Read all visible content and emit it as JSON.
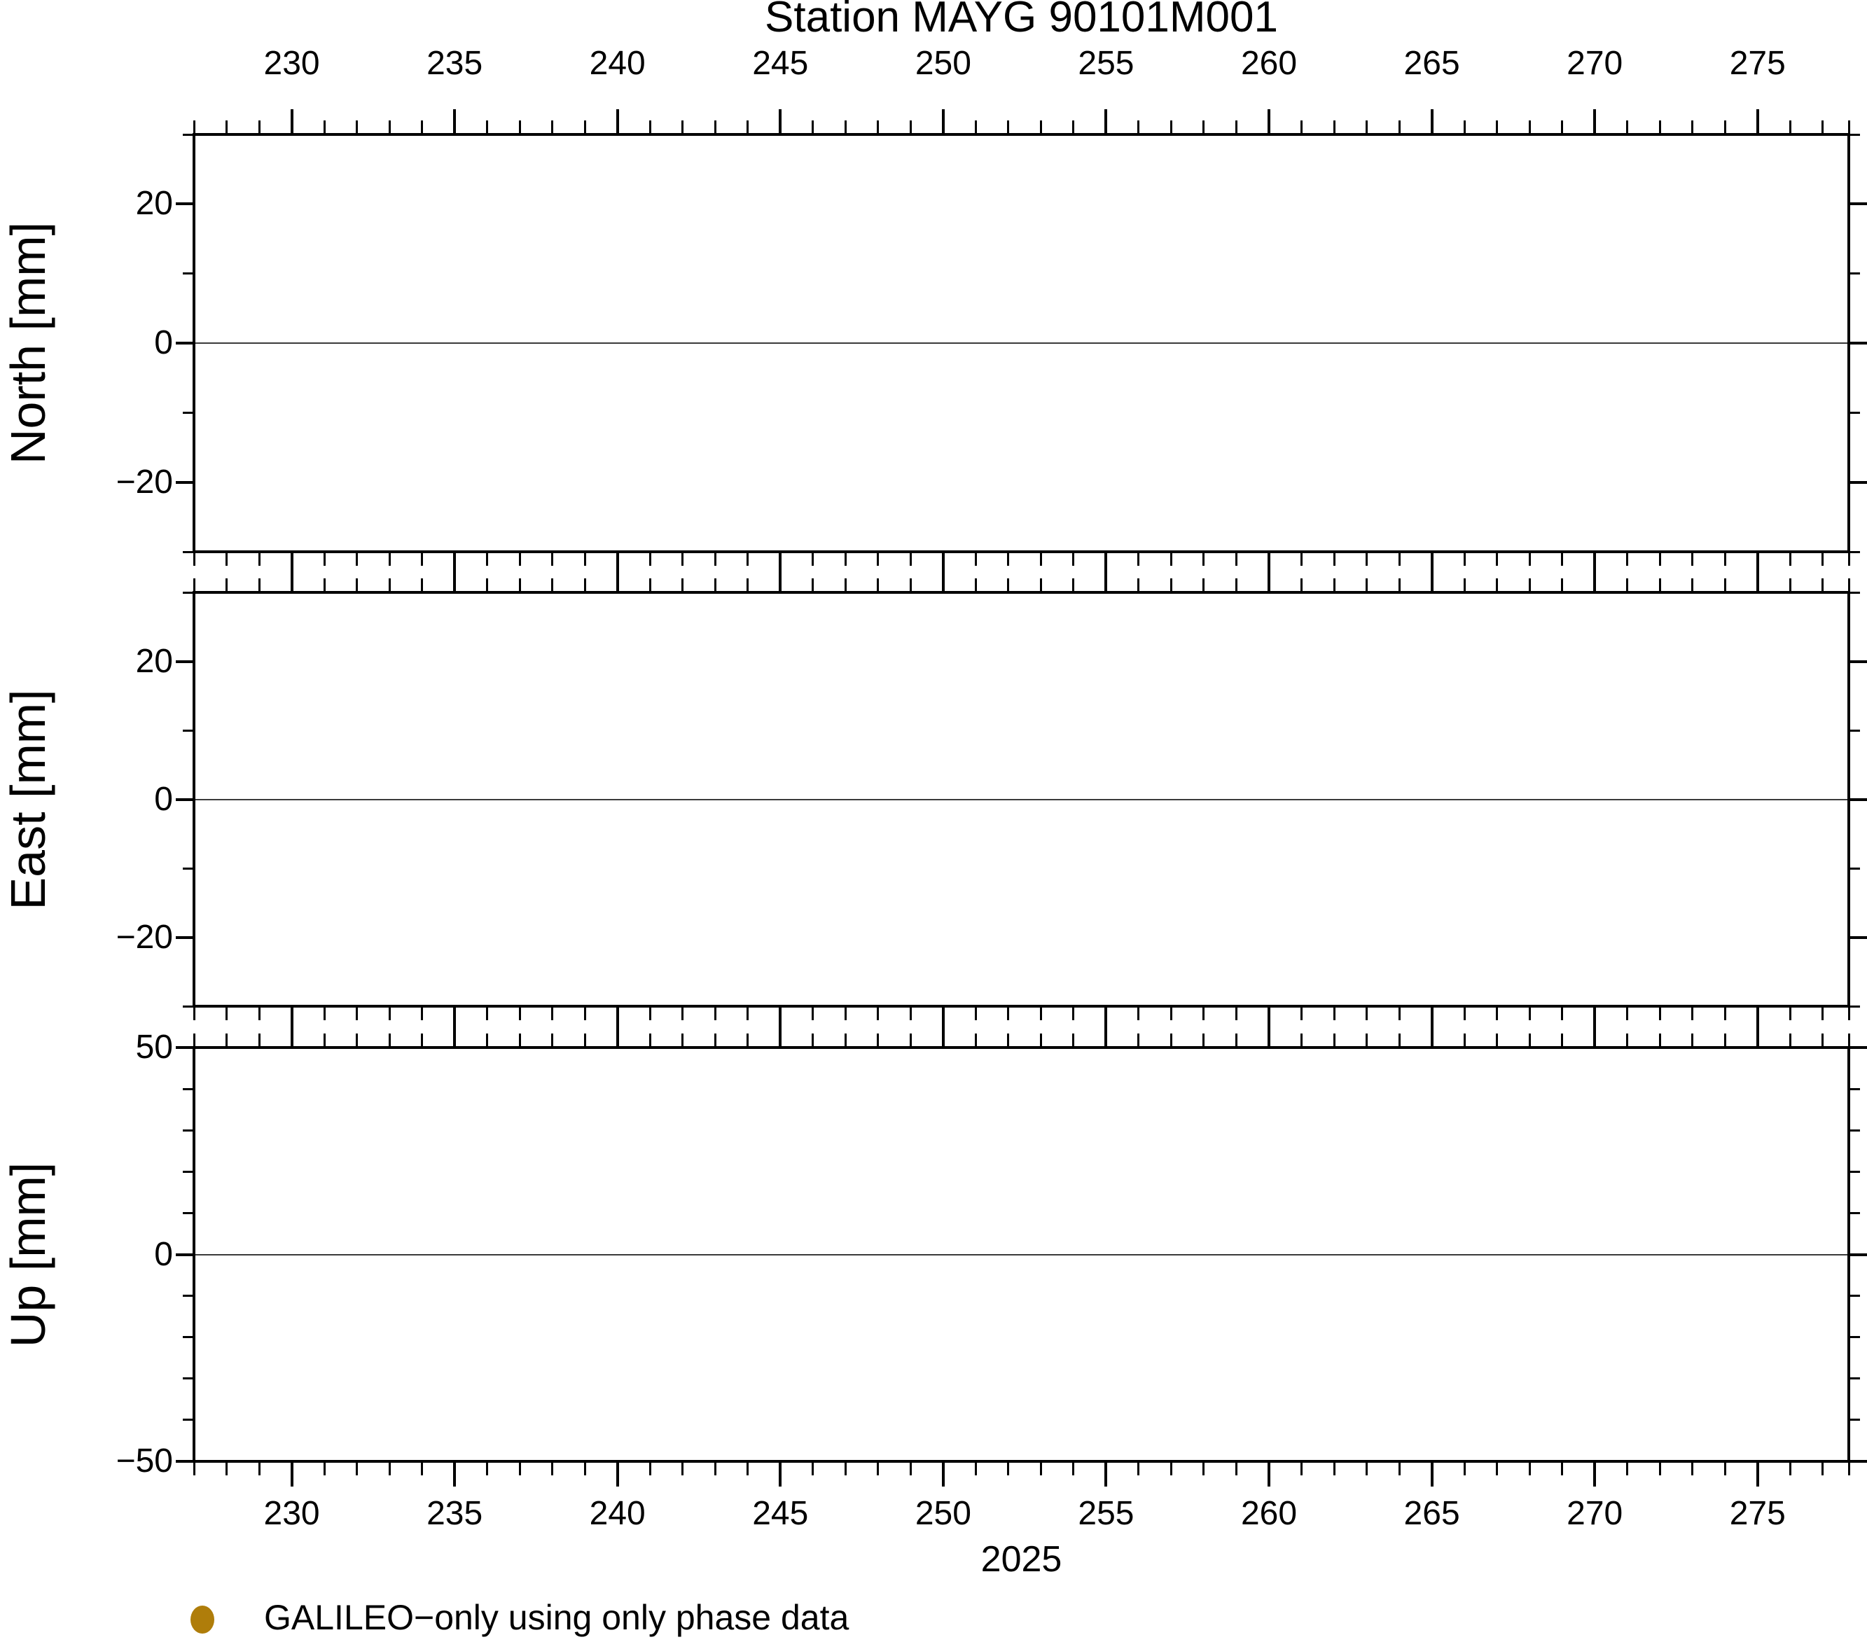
{
  "title": "Station MAYG 90101M001",
  "x_axis": {
    "range": [
      227.0,
      277.8
    ],
    "minor_step": 1,
    "major_step": 5,
    "major_tick_values": [
      230,
      235,
      240,
      245,
      250,
      255,
      260,
      265,
      270,
      275
    ],
    "major_tick_labels": [
      "230",
      "235",
      "240",
      "245",
      "250",
      "255",
      "260",
      "265",
      "270",
      "275"
    ],
    "year_label": "2025"
  },
  "panels": [
    {
      "id": "north",
      "ylabel": "North [mm]",
      "ylim": [
        -30,
        30
      ],
      "major_ticks": [
        {
          "value": 20,
          "label": "20"
        },
        {
          "value": 0,
          "label": "0"
        },
        {
          "value": -20,
          "label": "−20"
        }
      ],
      "minor_tick_values": [
        10,
        -10
      ],
      "zero_gridline": true
    },
    {
      "id": "east",
      "ylabel": "East [mm]",
      "ylim": [
        -30,
        30
      ],
      "major_ticks": [
        {
          "value": 20,
          "label": "20"
        },
        {
          "value": 0,
          "label": "0"
        },
        {
          "value": -20,
          "label": "−20"
        }
      ],
      "minor_tick_values": [
        10,
        -10
      ],
      "zero_gridline": true
    },
    {
      "id": "up",
      "ylabel": "Up [mm]",
      "ylim": [
        -50,
        50
      ],
      "major_ticks": [
        {
          "value": 50,
          "label": "50"
        },
        {
          "value": 0,
          "label": "0"
        },
        {
          "value": -50,
          "label": "−50"
        }
      ],
      "minor_tick_values": [
        40,
        30,
        20,
        10,
        -10,
        -20,
        -30,
        -40
      ],
      "zero_gridline": true
    }
  ],
  "legend": {
    "marker": "circle",
    "marker_color": "#AF7D0A",
    "label": "GALILEO−only using only phase data"
  },
  "chart_data": {
    "type": "scatter",
    "title": "Station MAYG 90101M001",
    "subplots": [
      {
        "ylabel": "North [mm]",
        "ylim": [
          -30,
          30
        ],
        "yticks": [
          -20,
          0,
          20
        ],
        "gridlines_y": [
          0
        ],
        "points": []
      },
      {
        "ylabel": "East [mm]",
        "ylim": [
          -30,
          30
        ],
        "yticks": [
          -20,
          0,
          20
        ],
        "gridlines_y": [
          0
        ],
        "points": []
      },
      {
        "ylabel": "Up [mm]",
        "ylim": [
          -50,
          50
        ],
        "yticks": [
          -50,
          0,
          50
        ],
        "gridlines_y": [
          0
        ],
        "points": []
      }
    ],
    "x": {
      "label": "2025",
      "range": [
        227.0,
        277.8
      ],
      "major_ticks": [
        230,
        235,
        240,
        245,
        250,
        255,
        260,
        265,
        270,
        275
      ],
      "minor_tick_step": 1
    },
    "series": [
      {
        "name": "GALILEO−only using only phase data",
        "color": "#AF7D0A",
        "marker": "circle",
        "values": []
      }
    ],
    "legend_position": "bottom-left",
    "note": "no data points plotted in any panel"
  }
}
